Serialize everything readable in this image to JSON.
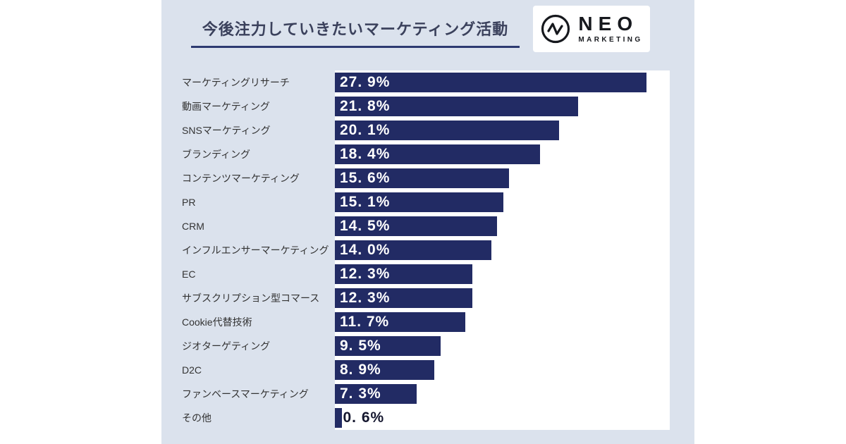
{
  "page": {
    "background": "#ffffff",
    "panel_background": "#dbe2ed"
  },
  "header": {
    "title": "今後注力していきたいマーケティング活動",
    "underline_color": "#2d3a71",
    "logo": {
      "icon": "pulse-circle-icon",
      "name": "NEO",
      "subtext": "MARKETING"
    }
  },
  "chart_data": {
    "type": "bar",
    "orientation": "horizontal",
    "title": "今後注力していきたいマーケティング活動",
    "categories": [
      "マーケティングリサーチ",
      "動画マーケティング",
      "SNSマーケティング",
      "ブランディング",
      "コンテンツマーケティング",
      "PR",
      "CRM",
      "インフルエンサーマーケティング",
      "EC",
      "サブスクリプション型コマース",
      "Cookie代替技術",
      "ジオターゲティング",
      "D2C",
      "ファンベースマーケティング",
      "その他"
    ],
    "values": [
      27.9,
      21.8,
      20.1,
      18.4,
      15.6,
      15.1,
      14.5,
      14.0,
      12.3,
      12.3,
      11.7,
      9.5,
      8.9,
      7.3,
      0.6
    ],
    "value_labels": [
      "27. 9%",
      "21. 8%",
      "20. 1%",
      "18. 4%",
      "15. 6%",
      "15. 1%",
      "14. 5%",
      "14. 0%",
      "12. 3%",
      "12. 3%",
      "11. 7%",
      "9. 5%",
      "8. 9%",
      "7. 3%",
      "0. 6%"
    ],
    "xlim": [
      0,
      30
    ],
    "grid": false,
    "legend": false,
    "bar_color": "#222b64",
    "plot_background": "#ffffff",
    "value_label_color_inside": "#ffffff",
    "value_label_color_outside": "#14162e"
  }
}
